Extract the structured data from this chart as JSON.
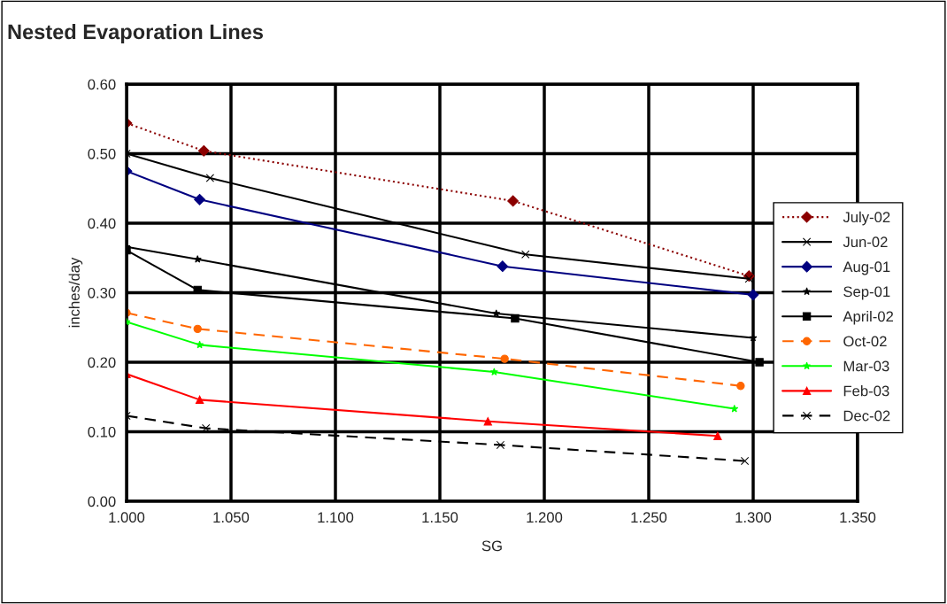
{
  "chart_data": {
    "type": "line",
    "title": "Nested Evaporation Lines",
    "xlabel": "SG",
    "ylabel": "inches/day",
    "xlim": [
      1.0,
      1.35
    ],
    "xticks": [
      {
        "value": 1.0,
        "label": "1.000"
      },
      {
        "value": 1.05,
        "label": "1.050"
      },
      {
        "value": 1.1,
        "label": "1.100"
      },
      {
        "value": 1.15,
        "label": "1.150"
      },
      {
        "value": 1.2,
        "label": "1.200"
      },
      {
        "value": 1.25,
        "label": "1.250"
      },
      {
        "value": 1.3,
        "label": "1.300"
      },
      {
        "value": 1.35,
        "label": "1.350"
      }
    ],
    "ylim": [
      0,
      0.6
    ],
    "yticks": [
      {
        "value": 0,
        "label": "0.00"
      },
      {
        "value": 0.1,
        "label": "0.10"
      },
      {
        "value": 0.2,
        "label": "0.20"
      },
      {
        "value": 0.3,
        "label": "0.30"
      },
      {
        "value": 0.4,
        "label": "0.40"
      },
      {
        "value": 0.5,
        "label": "0.50"
      },
      {
        "value": 0.6,
        "label": "0.60"
      }
    ],
    "grid": true,
    "legend": "right",
    "series": [
      {
        "name": "July-02",
        "color": "#8b0000",
        "line_style": "dotted",
        "marker": "diamond",
        "x": [
          1.0,
          1.037,
          1.185,
          1.298
        ],
        "values": [
          0.544,
          0.504,
          0.432,
          0.324
        ]
      },
      {
        "name": "Jun-02",
        "color": "#000000",
        "line_style": "solid",
        "marker": "cross",
        "x": [
          1.0,
          1.04,
          1.191,
          1.298
        ],
        "values": [
          0.5,
          0.465,
          0.355,
          0.32
        ]
      },
      {
        "name": "Aug-01",
        "color": "#000080",
        "line_style": "solid",
        "marker": "diamond",
        "x": [
          1.0,
          1.035,
          1.18,
          1.3
        ],
        "values": [
          0.475,
          0.434,
          0.338,
          0.297
        ]
      },
      {
        "name": "Sep-01",
        "color": "#000000",
        "line_style": "solid",
        "marker": "star",
        "x": [
          1.0,
          1.034,
          1.177,
          1.3
        ],
        "values": [
          0.366,
          0.348,
          0.27,
          0.235
        ]
      },
      {
        "name": "April-02",
        "color": "#000000",
        "line_style": "solid",
        "marker": "square",
        "x": [
          1.0,
          1.034,
          1.186,
          1.303
        ],
        "values": [
          0.361,
          0.304,
          0.263,
          0.2
        ]
      },
      {
        "name": "Oct-02",
        "color": "#ff6600",
        "line_style": "dashed",
        "marker": "circle",
        "x": [
          1.0,
          1.034,
          1.181,
          1.294
        ],
        "values": [
          0.271,
          0.248,
          0.205,
          0.166
        ]
      },
      {
        "name": "Mar-03",
        "color": "#00ff00",
        "line_style": "solid",
        "marker": "star",
        "x": [
          1.0,
          1.035,
          1.176,
          1.291
        ],
        "values": [
          0.258,
          0.225,
          0.186,
          0.133
        ]
      },
      {
        "name": "Feb-03",
        "color": "#ff0000",
        "line_style": "solid",
        "marker": "triangle",
        "x": [
          1.0,
          1.035,
          1.173,
          1.283
        ],
        "values": [
          0.183,
          0.146,
          0.115,
          0.094
        ]
      },
      {
        "name": "Dec-02",
        "color": "#000000",
        "line_style": "dashed",
        "marker": "cross",
        "x": [
          1.0,
          1.038,
          1.179,
          1.296
        ],
        "values": [
          0.123,
          0.105,
          0.081,
          0.058
        ]
      }
    ]
  }
}
